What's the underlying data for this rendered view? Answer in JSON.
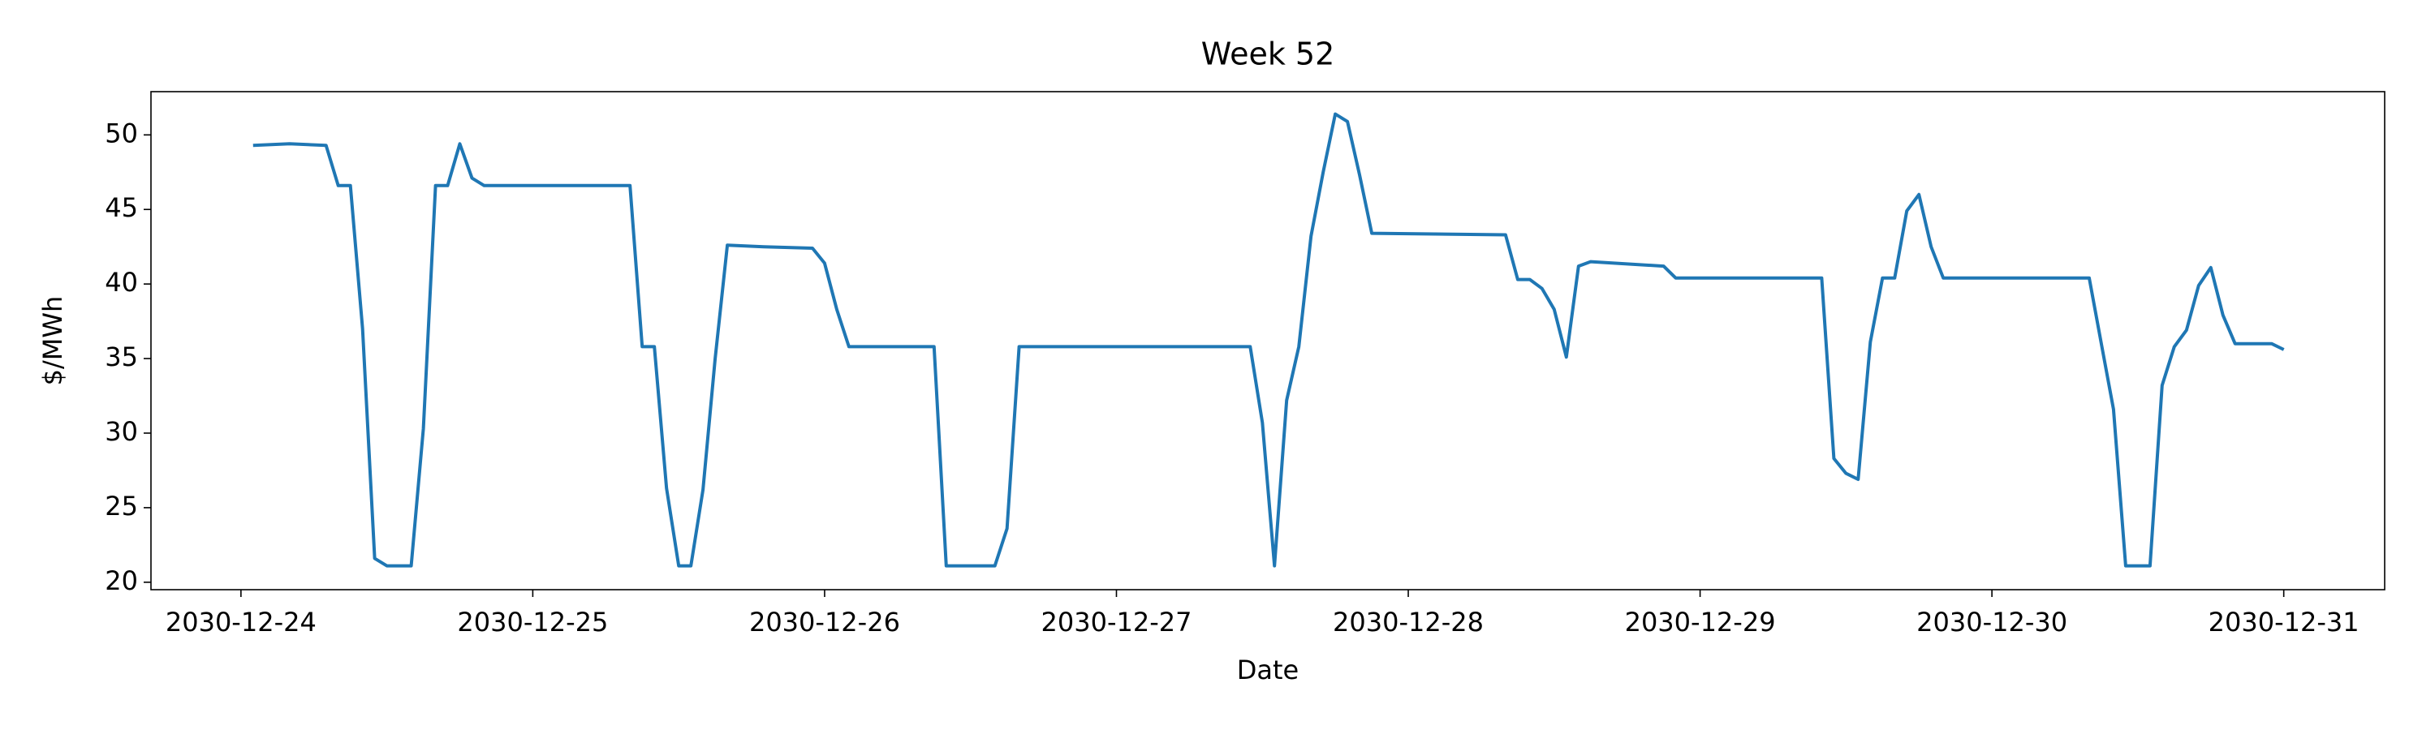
{
  "chart_data": {
    "type": "line",
    "title": "Week 52",
    "x_label": "Date",
    "y_label": "$/MWh",
    "color": "#1f77b4",
    "grid": false,
    "x": [
      "2030-12-24 01:00",
      "2030-12-24 04:00",
      "2030-12-24 07:00",
      "2030-12-24 08:00",
      "2030-12-24 09:00",
      "2030-12-24 10:00",
      "2030-12-24 11:00",
      "2030-12-24 12:00",
      "2030-12-24 14:00",
      "2030-12-24 15:00",
      "2030-12-24 16:00",
      "2030-12-24 17:00",
      "2030-12-24 18:00",
      "2030-12-24 19:00",
      "2030-12-24 20:00",
      "2030-12-25 08:00",
      "2030-12-25 09:00",
      "2030-12-25 10:00",
      "2030-12-25 11:00",
      "2030-12-25 12:00",
      "2030-12-25 13:00",
      "2030-12-25 14:00",
      "2030-12-25 15:00",
      "2030-12-25 16:00",
      "2030-12-25 19:00",
      "2030-12-25 23:00",
      "2030-12-26 00:00",
      "2030-12-26 01:00",
      "2030-12-26 02:00",
      "2030-12-26 09:00",
      "2030-12-26 10:00",
      "2030-12-26 14:00",
      "2030-12-26 15:00",
      "2030-12-26 16:00",
      "2030-12-27 11:00",
      "2030-12-27 12:00",
      "2030-12-27 13:00",
      "2030-12-27 14:00",
      "2030-12-27 15:00",
      "2030-12-27 16:00",
      "2030-12-27 17:00",
      "2030-12-27 18:00",
      "2030-12-27 19:00",
      "2030-12-27 20:00",
      "2030-12-27 21:00",
      "2030-12-28 08:00",
      "2030-12-28 09:00",
      "2030-12-28 10:00",
      "2030-12-28 11:00",
      "2030-12-28 12:00",
      "2030-12-28 13:00",
      "2030-12-28 14:00",
      "2030-12-28 15:00",
      "2030-12-28 21:00",
      "2030-12-28 22:00",
      "2030-12-29 10:00",
      "2030-12-29 11:00",
      "2030-12-29 12:00",
      "2030-12-29 13:00",
      "2030-12-29 14:00",
      "2030-12-29 15:00",
      "2030-12-29 16:00",
      "2030-12-29 17:00",
      "2030-12-29 18:00",
      "2030-12-29 19:00",
      "2030-12-29 20:00",
      "2030-12-30 08:00",
      "2030-12-30 09:00",
      "2030-12-30 10:00",
      "2030-12-30 11:00",
      "2030-12-30 13:00",
      "2030-12-30 14:00",
      "2030-12-30 15:00",
      "2030-12-30 16:00",
      "2030-12-30 17:00",
      "2030-12-30 18:00",
      "2030-12-30 19:00",
      "2030-12-30 20:00",
      "2030-12-30 23:00",
      "2030-12-31 00:00"
    ],
    "values": [
      49.3,
      49.4,
      49.3,
      46.6,
      46.6,
      37,
      21.6,
      21.1,
      21.1,
      30.3,
      46.6,
      46.6,
      49.4,
      47.1,
      46.6,
      46.6,
      35.8,
      35.8,
      26.3,
      21.1,
      21.1,
      26.2,
      35,
      42.6,
      42.5,
      42.4,
      41.4,
      38.3,
      35.8,
      35.8,
      21.1,
      21.1,
      23.6,
      35.8,
      35.8,
      30.7,
      21.1,
      32.2,
      35.8,
      43.2,
      47.5,
      51.4,
      50.9,
      47.3,
      43.4,
      43.3,
      40.3,
      40.3,
      39.7,
      38.3,
      35.1,
      41.2,
      41.5,
      41.2,
      40.4,
      40.4,
      28.3,
      27.3,
      26.9,
      36.1,
      40.4,
      40.4,
      44.9,
      46,
      42.5,
      40.4,
      40.4,
      36,
      31.6,
      21.1,
      21.1,
      33.2,
      35.8,
      36.9,
      39.9,
      41.1,
      37.9,
      36,
      36,
      35.6
    ],
    "xlim": [
      "2030-12-23 16:36",
      "2030-12-31 08:18"
    ],
    "xticks": [
      "2030-12-24",
      "2030-12-25",
      "2030-12-26",
      "2030-12-27",
      "2030-12-28",
      "2030-12-29",
      "2030-12-30",
      "2030-12-31"
    ],
    "ylim": [
      19.5,
      52.9
    ],
    "yticks": [
      20,
      25,
      30,
      35,
      40,
      45,
      50
    ]
  }
}
